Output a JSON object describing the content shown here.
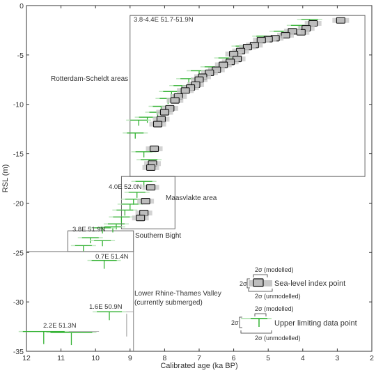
{
  "chart_data": {
    "type": "scatter",
    "xlabel": "Calibrated age (ka BP)",
    "ylabel": "RSL (m)",
    "xlim": [
      12,
      2
    ],
    "ylim": [
      -35,
      0
    ],
    "x_ticks": [
      12,
      11,
      10,
      9,
      8,
      7,
      6,
      5,
      4,
      3,
      2
    ],
    "y_ticks": [
      0,
      -5,
      -10,
      -15,
      -20,
      -25,
      -30,
      -35
    ],
    "grid": false,
    "colors": {
      "index_point_fill": "#c8c8c8",
      "index_point_stroke": "#111111",
      "limiting_point": "#33b233",
      "limiting_point_modelled": "#1a7a1a",
      "region_box": "#555555",
      "text": "#333333"
    },
    "regions": [
      {
        "id": "rotterdam",
        "coord_label": "3.8-4.4E 51.7-51.9N",
        "name": "Rotterdam-Scheldt areas",
        "x_range": [
          9.0,
          2.2
        ],
        "y_range": [
          -1.0,
          -17.3
        ]
      },
      {
        "id": "maasvlakte",
        "coord_label": "4.0E 52.0N",
        "name": "Maasvlakte area",
        "x_range": [
          9.25,
          7.7
        ],
        "y_range": [
          -17.3,
          -22.6
        ]
      },
      {
        "id": "southern-bight",
        "coord_label": "3.8E 51.9N",
        "name": "Southern Bight",
        "x_range": [
          10.8,
          8.9
        ],
        "y_range": [
          -22.8,
          -24.9
        ]
      },
      {
        "id": "lower-rhine",
        "coord_label": "0.7E 51.4N",
        "name": "Lower Rhine-Thames Valley",
        "subtitle": "(currently submerged)",
        "x_range": [
          12,
          8.9
        ],
        "y_range": [
          -24.9,
          -35
        ]
      },
      {
        "id": "label-1-6E",
        "coord_label": "1.6E 50.9N"
      },
      {
        "id": "label-2-2E",
        "coord_label": "2.2E 51.3N"
      }
    ],
    "series": [
      {
        "name": "Sea-level index point",
        "marker": "box",
        "points": [
          {
            "x": 2.9,
            "y": -1.5
          },
          {
            "x": 3.7,
            "y": -1.8
          },
          {
            "x": 3.9,
            "y": -2.3
          },
          {
            "x": 4.05,
            "y": -2.7
          },
          {
            "x": 4.3,
            "y": -2.6
          },
          {
            "x": 4.5,
            "y": -3.0
          },
          {
            "x": 4.8,
            "y": -3.3
          },
          {
            "x": 5.0,
            "y": -3.4
          },
          {
            "x": 5.2,
            "y": -3.5
          },
          {
            "x": 5.4,
            "y": -4.0
          },
          {
            "x": 5.6,
            "y": -4.2
          },
          {
            "x": 5.8,
            "y": -4.6
          },
          {
            "x": 6.0,
            "y": -4.9
          },
          {
            "x": 5.9,
            "y": -5.4
          },
          {
            "x": 6.1,
            "y": -5.7
          },
          {
            "x": 6.3,
            "y": -6.0
          },
          {
            "x": 6.5,
            "y": -6.5
          },
          {
            "x": 6.7,
            "y": -6.8
          },
          {
            "x": 6.9,
            "y": -7.2
          },
          {
            "x": 7.0,
            "y": -7.5
          },
          {
            "x": 7.1,
            "y": -8.0
          },
          {
            "x": 7.25,
            "y": -8.3
          },
          {
            "x": 7.4,
            "y": -8.6
          },
          {
            "x": 7.6,
            "y": -9.2
          },
          {
            "x": 7.7,
            "y": -9.6
          },
          {
            "x": 7.85,
            "y": -10.4
          },
          {
            "x": 8.0,
            "y": -10.8
          },
          {
            "x": 8.1,
            "y": -11.5
          },
          {
            "x": 8.2,
            "y": -12.0
          },
          {
            "x": 8.3,
            "y": -14.5
          },
          {
            "x": 8.35,
            "y": -16.0
          },
          {
            "x": 8.4,
            "y": -16.4
          },
          {
            "x": 8.4,
            "y": -18.4
          },
          {
            "x": 8.55,
            "y": -19.8
          },
          {
            "x": 8.6,
            "y": -21.0
          },
          {
            "x": 8.7,
            "y": -21.5
          }
        ]
      },
      {
        "name": "Upper limiting data point",
        "marker": "cross",
        "points": [
          {
            "x": 3.8,
            "y": -1.4
          },
          {
            "x": 4.1,
            "y": -2.0
          },
          {
            "x": 4.6,
            "y": -2.6
          },
          {
            "x": 5.1,
            "y": -3.1
          },
          {
            "x": 5.7,
            "y": -4.1
          },
          {
            "x": 6.2,
            "y": -5.3
          },
          {
            "x": 6.6,
            "y": -6.2
          },
          {
            "x": 7.0,
            "y": -6.6
          },
          {
            "x": 7.3,
            "y": -7.4
          },
          {
            "x": 7.5,
            "y": -8.1
          },
          {
            "x": 7.8,
            "y": -8.7
          },
          {
            "x": 7.9,
            "y": -9.4
          },
          {
            "x": 8.1,
            "y": -10.2
          },
          {
            "x": 8.2,
            "y": -10.8
          },
          {
            "x": 8.5,
            "y": -11.3
          },
          {
            "x": 8.75,
            "y": -11.6
          },
          {
            "x": 8.85,
            "y": -12.9
          },
          {
            "x": 8.6,
            "y": -14.8
          },
          {
            "x": 8.45,
            "y": -15.6
          },
          {
            "x": 8.6,
            "y": -17.8
          },
          {
            "x": 8.8,
            "y": -18.9
          },
          {
            "x": 8.9,
            "y": -19.6
          },
          {
            "x": 9.0,
            "y": -20.1
          },
          {
            "x": 9.15,
            "y": -20.7
          },
          {
            "x": 9.25,
            "y": -21.4
          },
          {
            "x": 9.4,
            "y": -22.1
          },
          {
            "x": 9.5,
            "y": -22.4
          },
          {
            "x": 9.8,
            "y": -22.5
          },
          {
            "x": 10.15,
            "y": -23.5
          },
          {
            "x": 10.35,
            "y": -24.3
          },
          {
            "x": 9.8,
            "y": -23.8
          },
          {
            "x": 9.75,
            "y": -25.8
          },
          {
            "x": 9.6,
            "y": -31.0
          },
          {
            "x": 11.5,
            "y": -33.0
          },
          {
            "x": 10.7,
            "y": -33.1
          }
        ]
      }
    ],
    "legend": {
      "placement": "bottom-right",
      "index_label": "Sea-level index point",
      "limiting_label": "Upper limiting data point",
      "modelled": "2σ (modelled)",
      "unmodelled": "2σ (unmodelled)",
      "sigma": "2σ"
    }
  }
}
